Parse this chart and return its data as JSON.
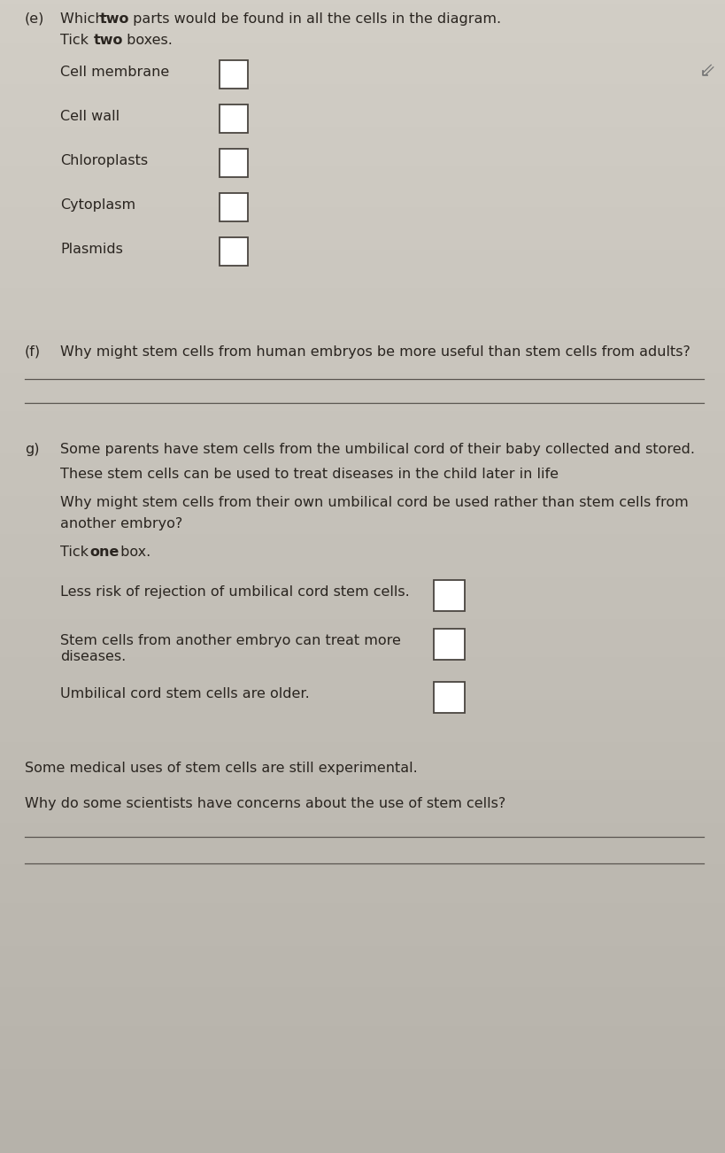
{
  "bg_color_top": "#ccc8bf",
  "bg_color_bottom": "#b8b4ac",
  "bg_color": "#c8c4bc",
  "text_color": "#2a2520",
  "dark_text": "#1a1510",
  "section_e": {
    "label": "(e)",
    "options": [
      "Cell membrane",
      "Cell wall",
      "Chloroplasts",
      "Cytoplasm",
      "Plasmids"
    ]
  },
  "section_f": {
    "label": "(f)"
  },
  "section_g": {
    "label": "g)",
    "g_options": [
      "Less risk of rejection of umbilical cord stem cells.",
      "Stem cells from another embryo can treat more",
      "diseases.",
      "Umbilical cord stem cells are older."
    ],
    "final_statement": "Some medical uses of stem cells are still experimental.",
    "final_question": "Why do some scientists have concerns about the use of stem cells?"
  }
}
